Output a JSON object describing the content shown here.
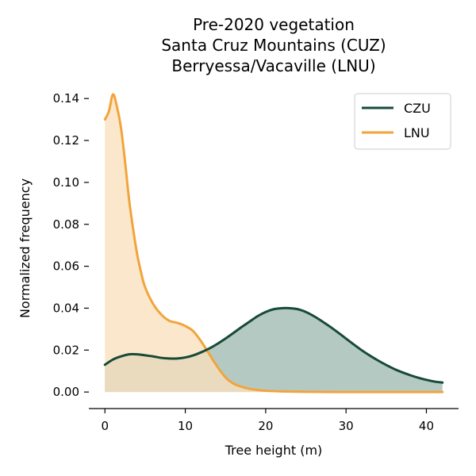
{
  "chart_data": {
    "type": "area",
    "title_lines": [
      "Pre-2020 vegetation",
      "Santa Cruz Mountains (CUZ)",
      "Berryessa/Vacaville (LNU)"
    ],
    "xlabel": "Tree height (m)",
    "ylabel": "Normalized frequency",
    "xlim": [
      -2,
      44
    ],
    "ylim": [
      -0.006,
      0.145
    ],
    "xticks": [
      0,
      10,
      20,
      30,
      40
    ],
    "yticks": [
      0.0,
      0.02,
      0.04,
      0.06,
      0.08,
      0.1,
      0.12,
      0.14
    ],
    "ytick_labels": [
      "0.00",
      "0.02",
      "0.04",
      "0.06",
      "0.08",
      "0.10",
      "0.12",
      "0.14"
    ],
    "grid": false,
    "legend_position": "top-right",
    "series": [
      {
        "name": "CZU",
        "color": "#174a37",
        "fill": "#b5c9c3",
        "x": [
          0,
          1,
          2,
          3,
          4,
          5,
          6,
          7,
          8,
          9,
          10,
          11,
          12,
          13,
          14,
          15,
          16,
          17,
          18,
          19,
          20,
          21,
          22,
          23,
          24,
          25,
          26,
          27,
          28,
          29,
          30,
          31,
          32,
          33,
          34,
          35,
          36,
          37,
          38,
          39,
          40,
          41,
          42
        ],
        "y": [
          0.013,
          0.0155,
          0.017,
          0.018,
          0.018,
          0.0175,
          0.017,
          0.0163,
          0.016,
          0.016,
          0.0165,
          0.0175,
          0.019,
          0.0208,
          0.023,
          0.0255,
          0.0282,
          0.031,
          0.0336,
          0.0362,
          0.0382,
          0.0395,
          0.04,
          0.04,
          0.0395,
          0.0382,
          0.0362,
          0.0338,
          0.0312,
          0.0284,
          0.0255,
          0.0226,
          0.0198,
          0.0173,
          0.015,
          0.0129,
          0.011,
          0.0094,
          0.008,
          0.0068,
          0.0058,
          0.005,
          0.0045
        ]
      },
      {
        "name": "LNU",
        "color": "#f2a43c",
        "fill": "#fae0bd",
        "x": [
          0,
          0.5,
          1,
          1.5,
          2,
          2.5,
          3,
          3.5,
          4,
          4.5,
          5,
          6,
          7,
          8,
          9,
          10,
          11,
          12,
          13,
          14,
          15,
          16,
          17,
          18,
          19,
          20,
          22,
          25,
          30,
          35,
          40,
          42
        ],
        "y": [
          0.13,
          0.134,
          0.142,
          0.136,
          0.126,
          0.11,
          0.092,
          0.078,
          0.066,
          0.057,
          0.05,
          0.042,
          0.037,
          0.034,
          0.033,
          0.0315,
          0.029,
          0.024,
          0.018,
          0.012,
          0.007,
          0.004,
          0.0025,
          0.0015,
          0.001,
          0.0006,
          0.0003,
          0.0001,
          0.0,
          0.0,
          0.0,
          0.0
        ]
      }
    ]
  }
}
